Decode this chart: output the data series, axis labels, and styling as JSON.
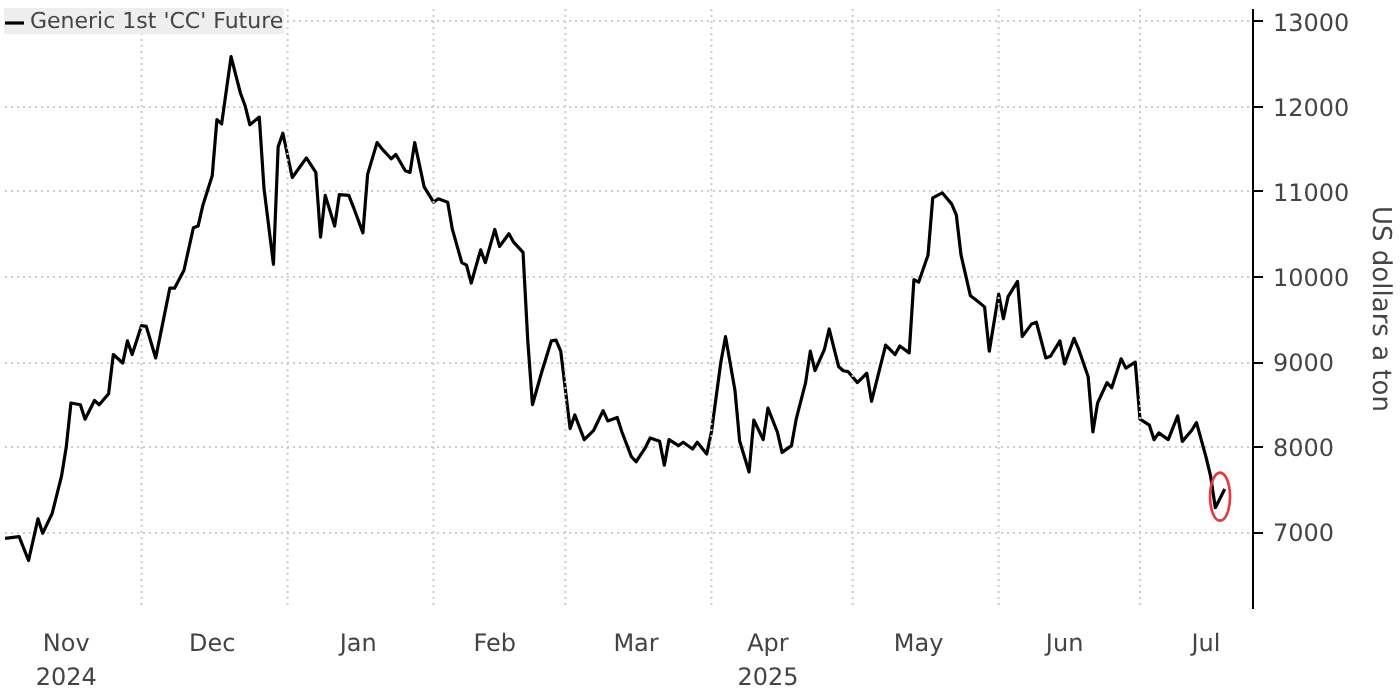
{
  "chart_data": {
    "type": "line",
    "ylabel": "US dollars a ton",
    "x": [
      "2024-11-02",
      "2024-11-05",
      "2024-11-07",
      "2024-11-09",
      "2024-11-10",
      "2024-11-12",
      "2024-11-14",
      "2024-11-15",
      "2024-11-16",
      "2024-11-18",
      "2024-11-19",
      "2024-11-21",
      "2024-11-22",
      "2024-11-24",
      "2024-11-25",
      "2024-11-27",
      "2024-11-28",
      "2024-11-29",
      "2024-12-01",
      "2024-12-02",
      "2024-12-04",
      "2024-12-07",
      "2024-12-08",
      "2024-12-10",
      "2024-12-12",
      "2024-12-13",
      "2024-12-14",
      "2024-12-16",
      "2024-12-17",
      "2024-12-18",
      "2024-12-20",
      "2024-12-22",
      "2024-12-23",
      "2024-12-24",
      "2024-12-26",
      "2024-12-27",
      "2024-12-29",
      "2024-12-30",
      "2024-12-31",
      "2025-01-02",
      "2025-01-05",
      "2025-01-07",
      "2025-01-08",
      "2025-01-09",
      "2025-01-11",
      "2025-01-12",
      "2025-01-14",
      "2025-01-15",
      "2025-01-17",
      "2025-01-18",
      "2025-01-20",
      "2025-01-21",
      "2025-01-23",
      "2025-01-24",
      "2025-01-26",
      "2025-01-27",
      "2025-01-28",
      "2025-01-30",
      "2025-02-01",
      "2025-02-02",
      "2025-02-04",
      "2025-02-05",
      "2025-02-07",
      "2025-02-08",
      "2025-02-09",
      "2025-02-11",
      "2025-02-12",
      "2025-02-14",
      "2025-02-15",
      "2025-02-17",
      "2025-02-18",
      "2025-02-20",
      "2025-02-21",
      "2025-02-22",
      "2025-02-24",
      "2025-02-26",
      "2025-02-27",
      "2025-02-28",
      "2025-03-02",
      "2025-03-03",
      "2025-03-05",
      "2025-03-07",
      "2025-03-09",
      "2025-03-10",
      "2025-03-12",
      "2025-03-13",
      "2025-03-15",
      "2025-03-16",
      "2025-03-18",
      "2025-03-19",
      "2025-03-21",
      "2025-03-22",
      "2025-03-23",
      "2025-03-25",
      "2025-03-26",
      "2025-03-28",
      "2025-03-29",
      "2025-03-31",
      "2025-04-01",
      "2025-04-03",
      "2025-04-04",
      "2025-04-06",
      "2025-04-07",
      "2025-04-09",
      "2025-04-10",
      "2025-04-12",
      "2025-04-13",
      "2025-04-15",
      "2025-04-16",
      "2025-04-18",
      "2025-04-19",
      "2025-04-21",
      "2025-04-22",
      "2025-04-23",
      "2025-04-25",
      "2025-04-26",
      "2025-04-28",
      "2025-04-29",
      "2025-04-30",
      "2025-05-02",
      "2025-05-04",
      "2025-05-05",
      "2025-05-07",
      "2025-05-08",
      "2025-05-10",
      "2025-05-11",
      "2025-05-13",
      "2025-05-14",
      "2025-05-15",
      "2025-05-17",
      "2025-05-18",
      "2025-05-20",
      "2025-05-22",
      "2025-05-23",
      "2025-05-24",
      "2025-05-26",
      "2025-05-27",
      "2025-05-29",
      "2025-05-30",
      "2025-06-01",
      "2025-06-02",
      "2025-06-03",
      "2025-06-05",
      "2025-06-06",
      "2025-06-08",
      "2025-06-09",
      "2025-06-11",
      "2025-06-12",
      "2025-06-14",
      "2025-06-15",
      "2025-06-17",
      "2025-06-18",
      "2025-06-20",
      "2025-06-21",
      "2025-06-22",
      "2025-06-24",
      "2025-06-25",
      "2025-06-27",
      "2025-06-28",
      "2025-06-30",
      "2025-07-01",
      "2025-07-03",
      "2025-07-04",
      "2025-07-05",
      "2025-07-07",
      "2025-07-09",
      "2025-07-10",
      "2025-07-12",
      "2025-07-13",
      "2025-07-15",
      "2025-07-16",
      "2025-07-17",
      "2025-07-19"
    ],
    "series": [
      {
        "name": "Generic 1st 'CC' Future",
        "color": "#000000",
        "values": [
          6930,
          6950,
          6670,
          7160,
          6990,
          7220,
          7660,
          8000,
          8520,
          8500,
          8330,
          8550,
          8500,
          8630,
          9090,
          8990,
          9250,
          9090,
          9430,
          9420,
          9050,
          9870,
          9870,
          10080,
          10580,
          10600,
          10840,
          11190,
          11850,
          11800,
          12590,
          12160,
          12010,
          11790,
          11880,
          11040,
          10150,
          11530,
          11690,
          11170,
          11400,
          11230,
          10470,
          10960,
          10600,
          10970,
          10960,
          10820,
          10520,
          11210,
          11580,
          11510,
          11390,
          11440,
          11250,
          11230,
          11580,
          11060,
          10880,
          10920,
          10880,
          10560,
          10170,
          10140,
          9930,
          10320,
          10170,
          10560,
          10360,
          10510,
          10410,
          10290,
          9260,
          8500,
          8890,
          9250,
          9260,
          9130,
          8220,
          8380,
          8090,
          8200,
          8430,
          8310,
          8350,
          8180,
          7890,
          7830,
          8000,
          8110,
          8070,
          7790,
          8090,
          8020,
          8060,
          7980,
          8060,
          7920,
          8180,
          9000,
          9300,
          8670,
          8070,
          7710,
          8320,
          8090,
          8460,
          8180,
          7940,
          8020,
          8330,
          8760,
          9130,
          8900,
          9150,
          9390,
          8950,
          8900,
          8890,
          8760,
          8870,
          8540,
          8980,
          9200,
          9090,
          9190,
          9110,
          9970,
          9940,
          10260,
          10930,
          10990,
          10860,
          10730,
          10260,
          9780,
          9740,
          9650,
          9130,
          9800,
          9510,
          9770,
          9950,
          9300,
          9450,
          9470,
          9050,
          9070,
          9250,
          8980,
          9280,
          9150,
          8830,
          8180,
          8520,
          8760,
          8700,
          9040,
          8930,
          9000,
          8330,
          8260,
          8090,
          8170,
          8090,
          8370,
          8070,
          8200,
          8290,
          7890,
          7660,
          7290,
          7510
        ]
      },
      {
        "type": "scatter",
        "marker": "circle",
        "color": "#e8383d",
        "x": [
          "2025-07-18"
        ],
        "values": [
          7420
        ]
      }
    ],
    "xlim": [
      "2024-11-02",
      "2025-07-25"
    ],
    "xticks": [
      {
        "value": "2024-11-15",
        "label": "Nov\n2024"
      },
      {
        "value": "2024-12-01",
        "label": null
      },
      {
        "value": "2024-12-16",
        "label": "Dec"
      },
      {
        "value": "2025-01-01",
        "label": null
      },
      {
        "value": "2025-01-16",
        "label": "Jan"
      },
      {
        "value": "2025-02-01",
        "label": null
      },
      {
        "value": "2025-02-14",
        "label": "Feb"
      },
      {
        "value": "2025-03-01",
        "label": null
      },
      {
        "value": "2025-03-16",
        "label": "Mar"
      },
      {
        "value": "2025-04-01",
        "label": null
      },
      {
        "value": "2025-04-13",
        "label": "Apr\n2025"
      },
      {
        "value": "2025-05-01",
        "label": null
      },
      {
        "value": "2025-05-15",
        "label": "May"
      },
      {
        "value": "2025-06-01",
        "label": null
      },
      {
        "value": "2025-06-15",
        "label": "Jun"
      },
      {
        "value": "2025-07-01",
        "label": null
      },
      {
        "value": "2025-07-15",
        "label": "Jul"
      }
    ],
    "ylim": [
      6100,
      13150
    ],
    "yticks": [
      7000,
      8000,
      9000,
      10000,
      11000,
      12000,
      13000
    ],
    "grid": true,
    "legend": "top left"
  }
}
